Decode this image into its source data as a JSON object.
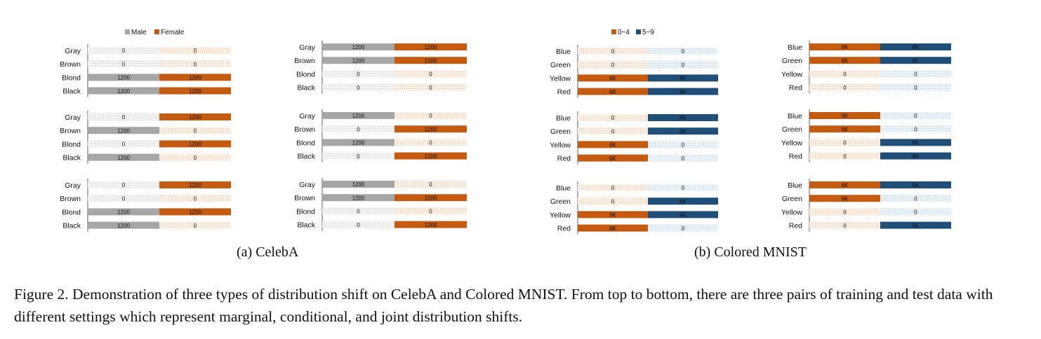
{
  "colors": {
    "gray": "#a6a6a6",
    "gray_hatch": "#cfcfcf",
    "orange": "#c55a11",
    "orange_hatch": "#f4b183",
    "navy": "#1f4e79",
    "navy_hatch": "#9dc3e6"
  },
  "chart_data": [
    {
      "panel": "celeba",
      "row": 1,
      "col": 1,
      "type": "bar",
      "categories": [
        "Gray",
        "Brown",
        "Blond",
        "Black"
      ],
      "series": [
        {
          "name": "Male",
          "values": [
            0,
            0,
            1200,
            1200
          ]
        },
        {
          "name": "Female",
          "values": [
            0,
            0,
            1200,
            1200
          ]
        }
      ],
      "value_labels": [
        [
          "0",
          "0",
          "1200",
          "1200"
        ],
        [
          "0",
          "0",
          "1200",
          "1200"
        ]
      ],
      "legend": "top"
    },
    {
      "panel": "celeba",
      "row": 1,
      "col": 2,
      "type": "bar",
      "categories": [
        "Gray",
        "Brown",
        "Blond",
        "Black"
      ],
      "series": [
        {
          "values": [
            1200,
            1200,
            0,
            0
          ]
        },
        {
          "values": [
            1200,
            1200,
            0,
            0
          ]
        }
      ],
      "value_labels": [
        [
          "1200",
          "1200",
          "0",
          "0"
        ],
        [
          "1200",
          "1200",
          "0",
          "0"
        ]
      ]
    },
    {
      "panel": "celeba",
      "row": 2,
      "col": 1,
      "type": "bar",
      "categories": [
        "Gray",
        "Brown",
        "Blond",
        "Black"
      ],
      "series": [
        {
          "values": [
            0,
            1200,
            0,
            1200
          ]
        },
        {
          "values": [
            1200,
            0,
            1200,
            0
          ]
        }
      ],
      "value_labels": [
        [
          "0",
          "1200",
          "0",
          "1200"
        ],
        [
          "1200",
          "0",
          "1200",
          "0"
        ]
      ]
    },
    {
      "panel": "celeba",
      "row": 2,
      "col": 2,
      "type": "bar",
      "categories": [
        "Gray",
        "Brown",
        "Blond",
        "Black"
      ],
      "series": [
        {
          "values": [
            1200,
            0,
            1200,
            0
          ]
        },
        {
          "values": [
            0,
            1200,
            0,
            1200
          ]
        }
      ],
      "value_labels": [
        [
          "1200",
          "0",
          "1200",
          "0"
        ],
        [
          "0",
          "1200",
          "0",
          "1200"
        ]
      ]
    },
    {
      "panel": "celeba",
      "row": 3,
      "col": 1,
      "type": "bar",
      "categories": [
        "Gray",
        "Brown",
        "Blond",
        "Black"
      ],
      "series": [
        {
          "values": [
            0,
            0,
            1200,
            1200
          ]
        },
        {
          "values": [
            1200,
            0,
            1200,
            0
          ]
        }
      ],
      "value_labels": [
        [
          "0",
          "0",
          "1200",
          "1200"
        ],
        [
          "1200",
          "0",
          "1200",
          "0"
        ]
      ]
    },
    {
      "panel": "celeba",
      "row": 3,
      "col": 2,
      "type": "bar",
      "categories": [
        "Gray",
        "Brown",
        "Blond",
        "Black"
      ],
      "series": [
        {
          "values": [
            1200,
            1200,
            0,
            0
          ]
        },
        {
          "values": [
            0,
            1200,
            0,
            1200
          ]
        }
      ],
      "value_labels": [
        [
          "1200",
          "1200",
          "0",
          "0"
        ],
        [
          "0",
          "1200",
          "0",
          "1200"
        ]
      ]
    },
    {
      "panel": "mnist",
      "row": 1,
      "col": 1,
      "type": "bar",
      "categories": [
        "Blue",
        "Green",
        "Yellow",
        "Red"
      ],
      "series": [
        {
          "name": "0~4",
          "values": [
            0,
            0,
            6000,
            6000
          ]
        },
        {
          "name": "5~9",
          "values": [
            0,
            0,
            6000,
            6000
          ]
        }
      ],
      "value_labels": [
        [
          "0",
          "0",
          "6K",
          "6K"
        ],
        [
          "0",
          "0",
          "6K",
          "6K"
        ]
      ],
      "legend": "top"
    },
    {
      "panel": "mnist",
      "row": 1,
      "col": 2,
      "type": "bar",
      "categories": [
        "Blue",
        "Green",
        "Yellow",
        "Red"
      ],
      "series": [
        {
          "values": [
            6000,
            6000,
            0,
            0
          ]
        },
        {
          "values": [
            6000,
            6000,
            0,
            0
          ]
        }
      ],
      "value_labels": [
        [
          "6K",
          "6K",
          "0",
          "0"
        ],
        [
          "6K",
          "6K",
          "0",
          "0"
        ]
      ]
    },
    {
      "panel": "mnist",
      "row": 2,
      "col": 1,
      "type": "bar",
      "categories": [
        "Blue",
        "Green",
        "Yellow",
        "Red"
      ],
      "series": [
        {
          "values": [
            0,
            0,
            6000,
            6000
          ]
        },
        {
          "values": [
            6000,
            6000,
            0,
            0
          ]
        }
      ],
      "value_labels": [
        [
          "0",
          "0",
          "6K",
          "6K"
        ],
        [
          "6K",
          "6K",
          "0",
          "0"
        ]
      ]
    },
    {
      "panel": "mnist",
      "row": 2,
      "col": 2,
      "type": "bar",
      "categories": [
        "Blue",
        "Green",
        "Yellow",
        "Red"
      ],
      "series": [
        {
          "values": [
            6000,
            6000,
            0,
            0
          ]
        },
        {
          "values": [
            0,
            0,
            6000,
            6000
          ]
        }
      ],
      "value_labels": [
        [
          "6K",
          "6K",
          "0",
          "0"
        ],
        [
          "0",
          "0",
          "6K",
          "6K"
        ]
      ]
    },
    {
      "panel": "mnist",
      "row": 3,
      "col": 1,
      "type": "bar",
      "categories": [
        "Blue",
        "Green",
        "Yellow",
        "Red"
      ],
      "series": [
        {
          "values": [
            0,
            0,
            6000,
            6000
          ]
        },
        {
          "values": [
            0,
            6000,
            6000,
            0
          ]
        }
      ],
      "value_labels": [
        [
          "0",
          "0",
          "6K",
          "6K"
        ],
        [
          "0",
          "6K",
          "6K",
          "0"
        ]
      ]
    },
    {
      "panel": "mnist",
      "row": 3,
      "col": 2,
      "type": "bar",
      "categories": [
        "Blue",
        "Green",
        "Yellow",
        "Red"
      ],
      "series": [
        {
          "values": [
            6000,
            6000,
            0,
            0
          ]
        },
        {
          "values": [
            6000,
            0,
            0,
            6000
          ]
        }
      ],
      "value_labels": [
        [
          "6K",
          "6K",
          "0",
          "0"
        ],
        [
          "6K",
          "0",
          "0",
          "6K"
        ]
      ]
    }
  ],
  "captions": {
    "celeba": "(a) CelebA",
    "mnist": "(b) Colored MNIST",
    "figure": "Figure 2. Demonstration of three types of distribution shift on CelebA and Colored MNIST. From top to bottom, there are three pairs of training and test data with different settings which represent marginal, conditional, and joint distribution shifts."
  }
}
